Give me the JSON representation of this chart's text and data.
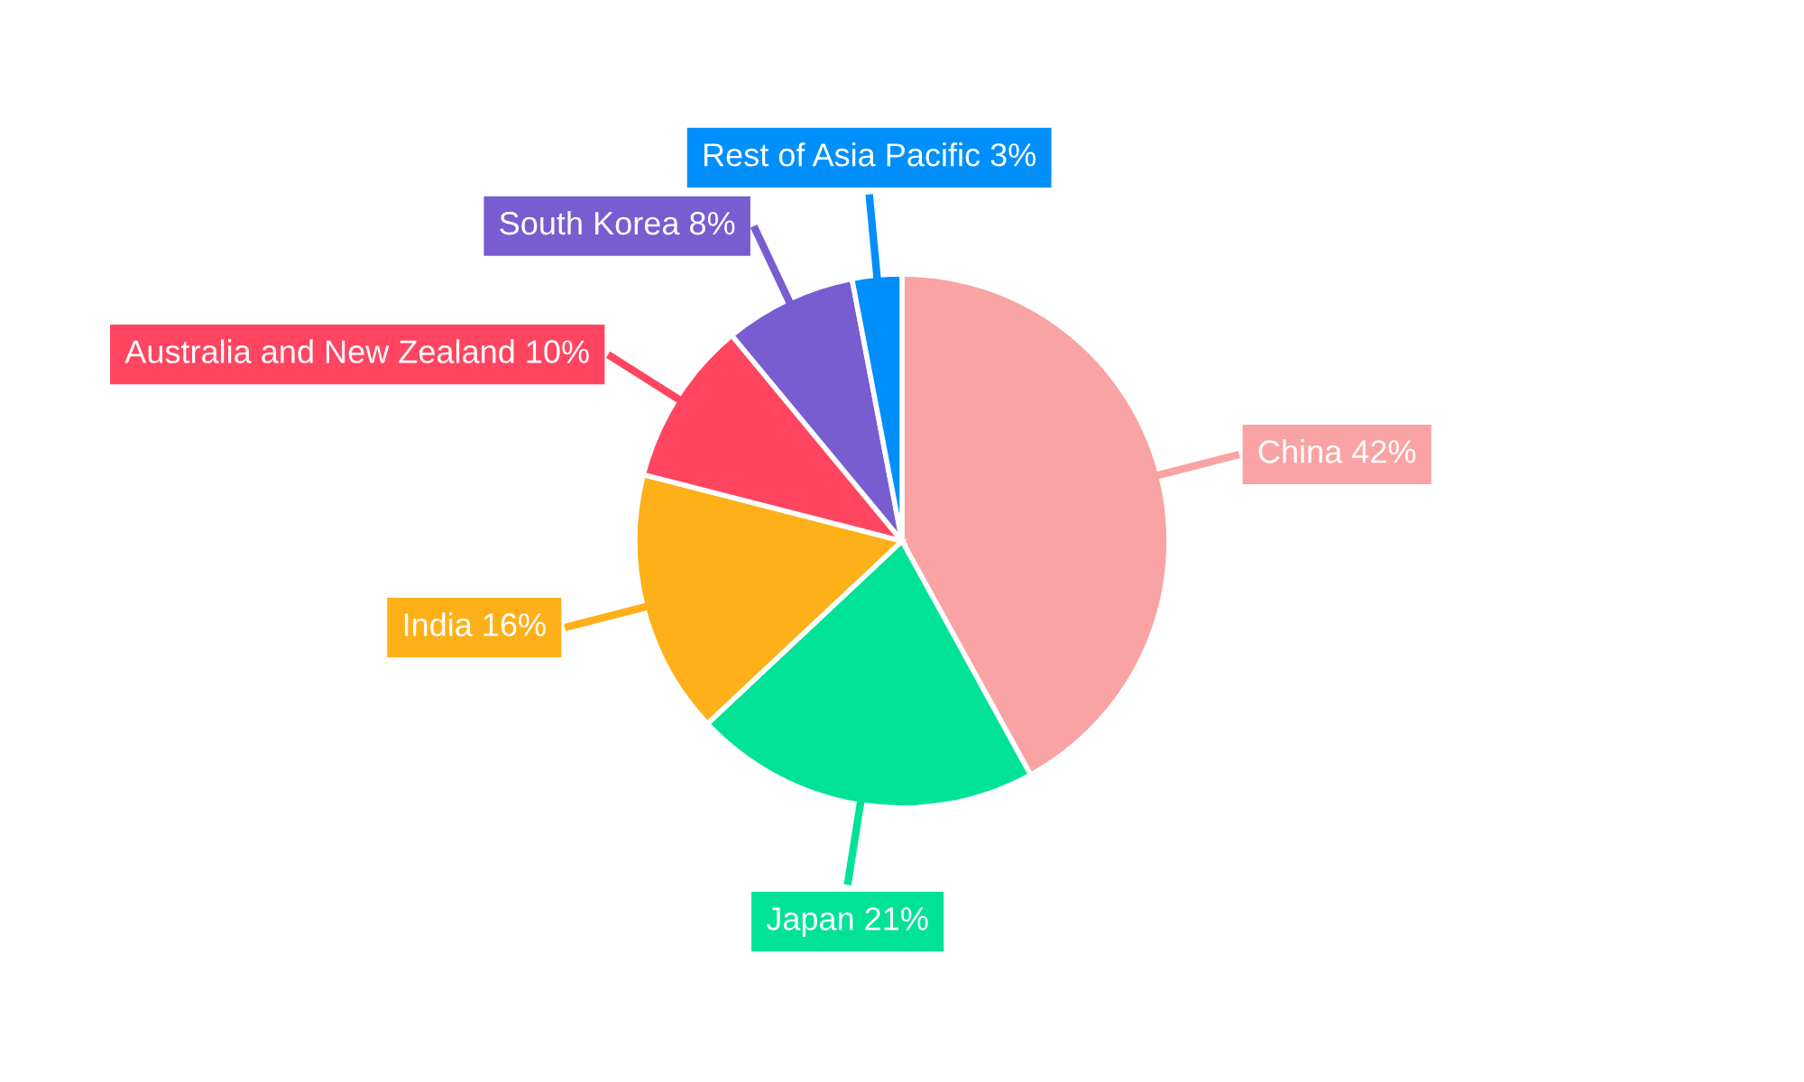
{
  "chart_data": {
    "type": "pie",
    "categories": [
      "China",
      "Japan",
      "India",
      "Australia and New Zealand",
      "South Korea",
      "Rest of Asia Pacific"
    ],
    "values": [
      42,
      21,
      16,
      10,
      8,
      3
    ],
    "value_labels": [
      "42%",
      "21%",
      "16%",
      "10%",
      "8%",
      "3%"
    ],
    "colors": [
      "#f9a3a4",
      "#00e396",
      "#feb019",
      "#ff4560",
      "#775dd0",
      "#008ffb"
    ],
    "legend": false
  }
}
